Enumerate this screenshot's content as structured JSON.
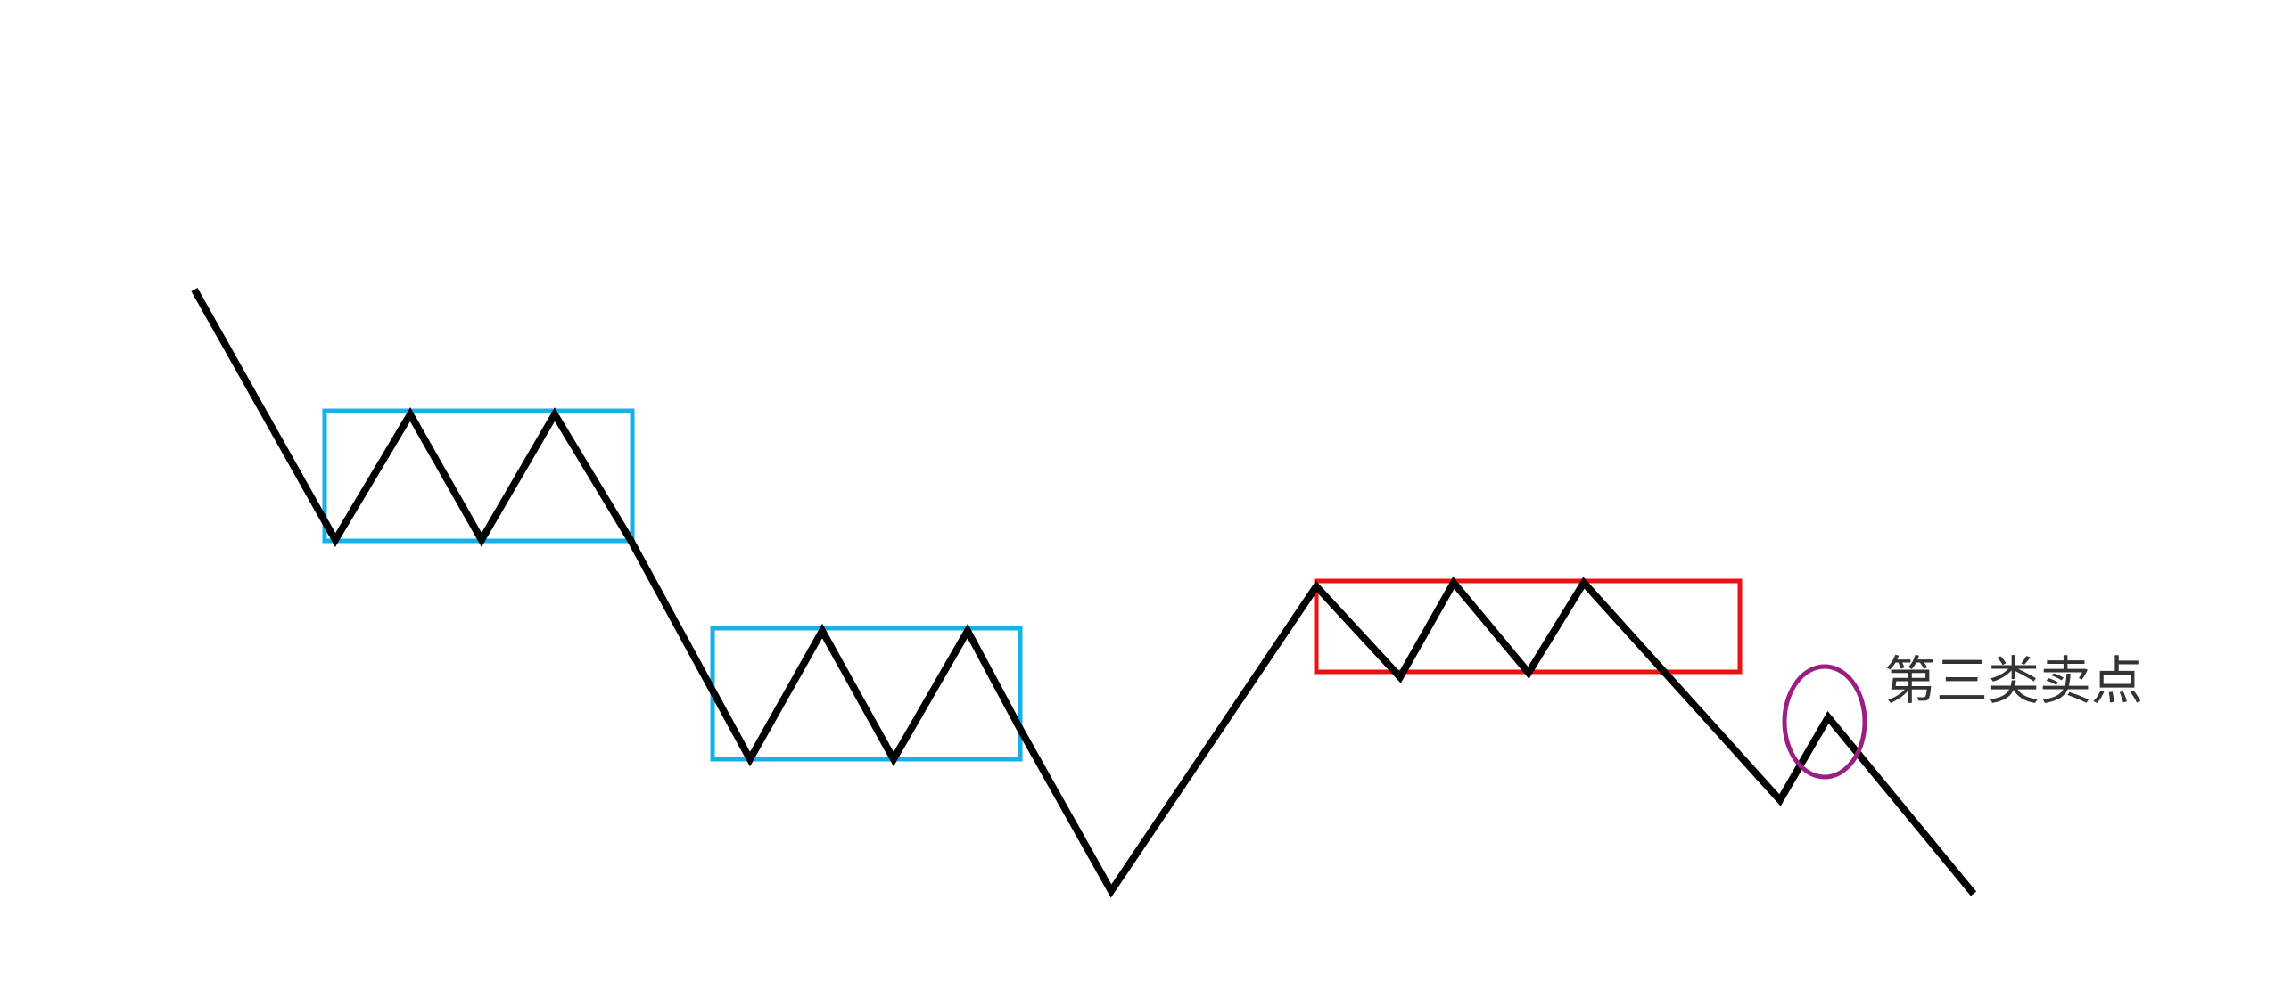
{
  "annotation": {
    "label": "第三类卖点"
  },
  "colors": {
    "price_line": "#000000",
    "down_pivot_box": "#15b2ea",
    "up_pivot_box": "#ee1111",
    "sell_point_marker": "#9b1f82",
    "label_text": "#333333"
  }
}
